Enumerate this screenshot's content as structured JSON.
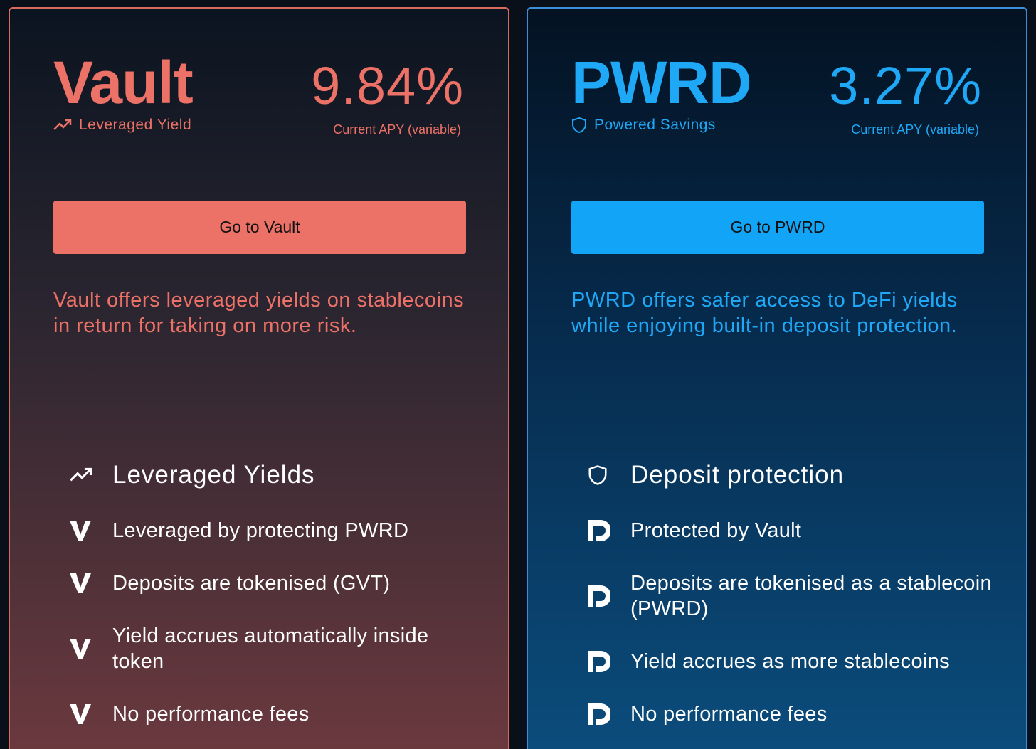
{
  "cards": [
    {
      "logo": "Vault",
      "tagline": "Leveraged Yield",
      "apy": "9.84%",
      "apy_label": "Current APY (variable)",
      "button": "Go to Vault",
      "description": "Vault offers leveraged yields on stablecoins in return for taking on more risk.",
      "features_title": "Leveraged Yields",
      "features": [
        "Leveraged by protecting PWRD",
        "Deposits are tokenised (GVT)",
        "Yield accrues automatically inside token",
        "No performance fees"
      ]
    },
    {
      "logo": "PWRD",
      "tagline": "Powered Savings",
      "apy": "3.27%",
      "apy_label": "Current APY (variable)",
      "button": "Go to PWRD",
      "description": "PWRD offers safer access to DeFi yields while enjoying built-in deposit protection.",
      "features_title": "Deposit protection",
      "features": [
        "Protected by Vault",
        "Deposits are tokenised as a stablecoin (PWRD)",
        "Yield accrues as more stablecoins",
        "No performance fees"
      ]
    }
  ]
}
